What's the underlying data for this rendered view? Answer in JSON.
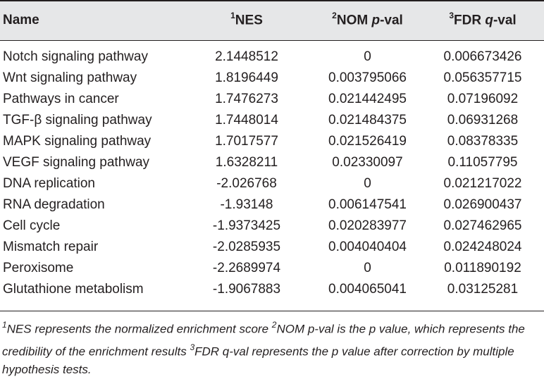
{
  "table": {
    "headers": {
      "name": "Name",
      "nes_sup": "1",
      "nes": "NES",
      "nom_sup": "2",
      "nom_prefix": "NOM ",
      "nom_italic": "p",
      "nom_suffix": "-val",
      "fdr_sup": "3",
      "fdr_prefix": "FDR ",
      "fdr_italic": "q",
      "fdr_suffix": "-val"
    },
    "rows": [
      {
        "name": "Notch signaling pathway",
        "nes": "2.1448512",
        "nom": "0",
        "fdr": "0.006673426"
      },
      {
        "name": "Wnt signaling pathway",
        "nes": "1.8196449",
        "nom": "0.003795066",
        "fdr": "0.056357715"
      },
      {
        "name": "Pathways in cancer",
        "nes": "1.7476273",
        "nom": "0.021442495",
        "fdr": "0.07196092"
      },
      {
        "name": "TGF-β signaling pathway",
        "nes": "1.7448014",
        "nom": "0.021484375",
        "fdr": "0.06931268"
      },
      {
        "name": "MAPK signaling pathway",
        "nes": "1.7017577",
        "nom": "0.021526419",
        "fdr": "0.08378335"
      },
      {
        "name": "VEGF signaling pathway",
        "nes": "1.6328211",
        "nom": "0.02330097",
        "fdr": "0.11057795"
      },
      {
        "name": "DNA replication",
        "nes": "-2.026768",
        "nom": "0",
        "fdr": "0.021217022"
      },
      {
        "name": "RNA degradation",
        "nes": "-1.93148",
        "nom": "0.006147541",
        "fdr": "0.026900437"
      },
      {
        "name": "Cell cycle",
        "nes": "-1.9373425",
        "nom": "0.020283977",
        "fdr": "0.027462965"
      },
      {
        "name": "Mismatch repair",
        "nes": "-2.0285935",
        "nom": "0.004040404",
        "fdr": "0.024248024"
      },
      {
        "name": "Peroxisome",
        "nes": "-2.2689974",
        "nom": "0",
        "fdr": "0.011890192"
      },
      {
        "name": "Glutathione metabolism",
        "nes": "-1.9067883",
        "nom": "0.004065041",
        "fdr": "0.03125281"
      }
    ]
  },
  "footnote": {
    "sup1": "1",
    "text1": "NES represents the normalized enrichment score ",
    "sup2": "2",
    "text2": "NOM p-val is the p value, which represents the credibility of the enrichment results ",
    "sup3": "3",
    "text3": "FDR q-val represents the p value after correction by multiple hypothesis tests."
  },
  "colors": {
    "header_background": "#e6e7e8",
    "text": "#231f20",
    "rule": "#231f20"
  }
}
